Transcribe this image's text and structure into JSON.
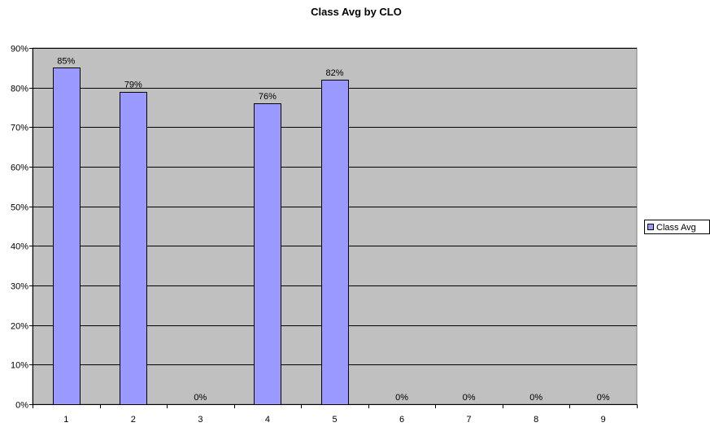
{
  "chart_data": {
    "type": "bar",
    "title": "Class Avg by CLO",
    "xlabel": "",
    "ylabel": "",
    "categories": [
      "1",
      "2",
      "3",
      "4",
      "5",
      "6",
      "7",
      "8",
      "9"
    ],
    "series": [
      {
        "name": "Class Avg",
        "values": [
          0.85,
          0.79,
          0,
          0.76,
          0.82,
          0,
          0,
          0,
          0
        ],
        "data_labels": [
          "85%",
          "79%",
          "0%",
          "76%",
          "82%",
          "0%",
          "0%",
          "0%",
          "0%"
        ]
      }
    ],
    "ylim": [
      0,
      0.9
    ],
    "y_ticks": [
      0,
      0.1,
      0.2,
      0.3,
      0.4,
      0.5,
      0.6,
      0.7,
      0.8,
      0.9
    ],
    "y_tick_labels": [
      "0%",
      "10%",
      "20%",
      "30%",
      "40%",
      "50%",
      "60%",
      "70%",
      "80%",
      "90%"
    ],
    "grid": true,
    "legend_position": "right",
    "colors": {
      "bar_fill": "#9999ff",
      "bar_stroke": "#000000",
      "plot_background": "#c0c0c0",
      "gridline": "#000000"
    }
  }
}
